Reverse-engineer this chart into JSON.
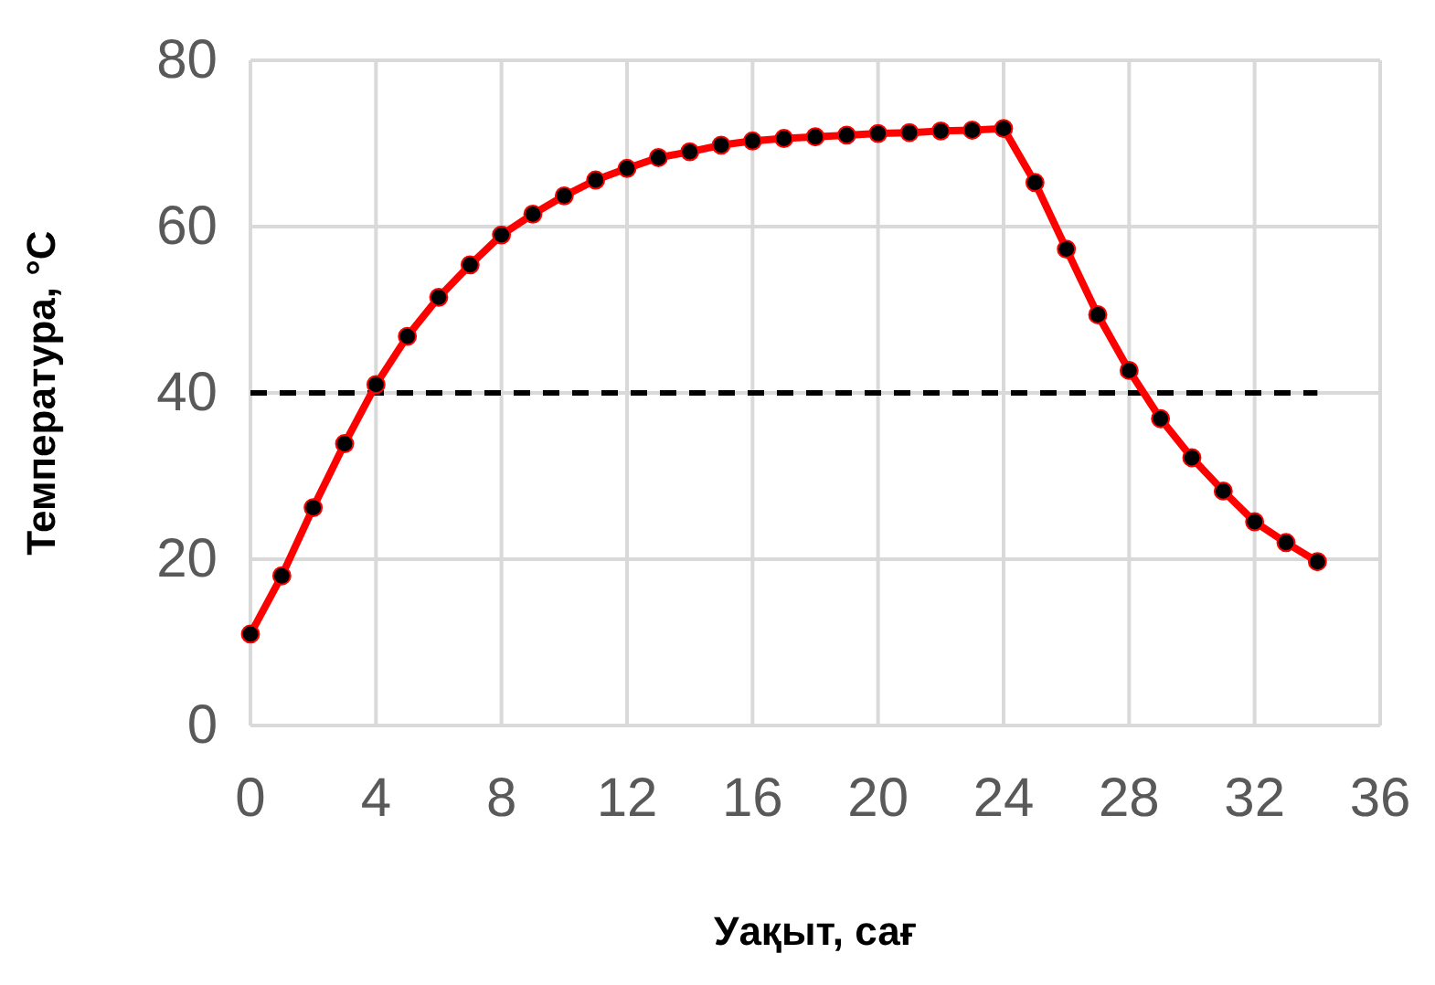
{
  "chart_data": {
    "type": "line",
    "xlabel": "Уақыт, сағ",
    "ylabel": "Температура, °C",
    "x": [
      0,
      1,
      2,
      3,
      4,
      5,
      6,
      7,
      8,
      9,
      10,
      11,
      12,
      13,
      14,
      15,
      16,
      17,
      18,
      19,
      20,
      21,
      22,
      23,
      24,
      25,
      26,
      27,
      28,
      29,
      30,
      31,
      32,
      33,
      34
    ],
    "series": [
      {
        "color": "#ff0000",
        "values": [
          11.0,
          18.0,
          26.2,
          33.9,
          41.0,
          46.8,
          51.5,
          55.4,
          59.0,
          61.5,
          63.7,
          65.6,
          67.0,
          68.3,
          69.0,
          69.8,
          70.3,
          70.6,
          70.8,
          71.0,
          71.2,
          71.3,
          71.5,
          71.6,
          71.8,
          65.3,
          57.3,
          49.4,
          42.7,
          36.9,
          32.2,
          28.2,
          24.5,
          22.0,
          19.7
        ]
      }
    ],
    "xlim": [
      0,
      36
    ],
    "xticks": [
      0,
      4,
      8,
      12,
      16,
      20,
      24,
      28,
      32,
      36
    ],
    "ylim": [
      0,
      80
    ],
    "yticks": [
      0,
      20,
      40,
      60,
      80
    ],
    "grid": true,
    "marker": "circle",
    "line_style": "solid",
    "ref_lines": [
      {
        "axis": "y",
        "value": 40,
        "color": "#000000",
        "line_style": "dashed"
      }
    ]
  }
}
